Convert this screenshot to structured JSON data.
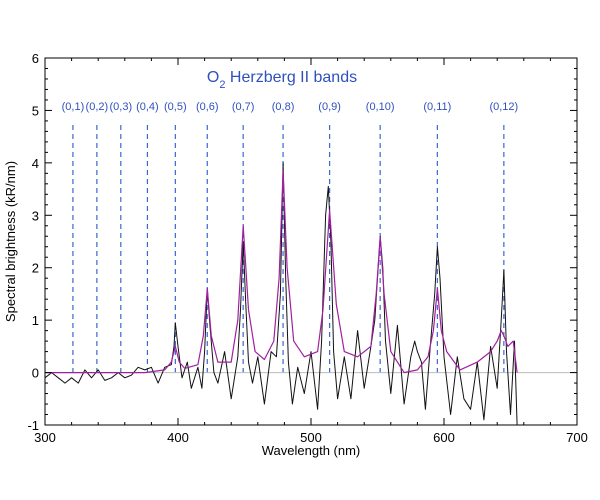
{
  "chart_data": {
    "type": "line",
    "title_main": "O",
    "title_sub": "2",
    "title_rest": " Herzberg II bands",
    "xlabel": "Wavelength (nm)",
    "ylabel": "Spectral brightness (kR/nm)",
    "xlim": [
      300,
      700
    ],
    "ylim": [
      -1,
      6
    ],
    "xticks": [
      "300",
      "400",
      "500",
      "600",
      "700"
    ],
    "yticks": [
      "-1",
      "0",
      "1",
      "2",
      "3",
      "4",
      "5",
      "6"
    ],
    "grid": false,
    "colors": {
      "observed": "#111111",
      "model": "#a020a0",
      "band": "#3a66d0",
      "zero": "#bbbbbb"
    },
    "bands": [
      {
        "label": "(0,1)",
        "x": 321
      },
      {
        "label": "(0,2)",
        "x": 339
      },
      {
        "label": "(0,3)",
        "x": 357
      },
      {
        "label": "(0,4)",
        "x": 377
      },
      {
        "label": "(0,5)",
        "x": 398
      },
      {
        "label": "(0,6)",
        "x": 422
      },
      {
        "label": "(0,7)",
        "x": 449
      },
      {
        "label": "(0,8)",
        "x": 479
      },
      {
        "label": "(0,9)",
        "x": 514
      },
      {
        "label": "(0,10)",
        "x": 552
      },
      {
        "label": "(0,11)",
        "x": 595
      },
      {
        "label": "(0,12)",
        "x": 645
      }
    ],
    "series": [
      {
        "x": [
          300,
          305,
          310,
          315,
          320,
          325,
          330,
          335,
          340,
          345,
          350,
          355,
          360,
          365,
          370,
          375,
          380,
          385,
          390,
          395,
          397,
          398,
          400,
          403,
          407,
          410,
          415,
          418,
          420,
          422,
          424,
          427,
          430,
          435,
          440,
          445,
          447,
          449,
          451,
          453,
          456,
          460,
          465,
          470,
          474,
          477,
          479,
          481,
          483,
          486,
          490,
          495,
          500,
          505,
          508,
          511,
          513,
          515,
          517,
          520,
          525,
          530,
          535,
          540,
          545,
          548,
          550,
          552,
          554,
          556,
          560,
          565,
          570,
          575,
          578,
          580,
          583,
          586,
          590,
          593,
          595,
          597,
          600,
          605,
          610,
          615,
          620,
          625,
          630,
          635,
          640,
          643,
          645,
          647,
          650,
          653,
          655
        ],
        "values": [
          -0.1,
          0.0,
          -0.1,
          -0.2,
          -0.1,
          -0.2,
          0.05,
          -0.1,
          0.05,
          -0.15,
          -0.1,
          0.0,
          -0.1,
          -0.05,
          0.1,
          0.05,
          0.1,
          -0.2,
          0.1,
          0.15,
          0.5,
          0.95,
          0.5,
          -0.1,
          0.2,
          -0.3,
          0.1,
          -0.3,
          0.4,
          1.6,
          0.9,
          0.0,
          -0.2,
          0.4,
          -0.5,
          0.3,
          1.2,
          2.5,
          1.3,
          0.2,
          -0.2,
          0.3,
          -0.6,
          0.4,
          0.3,
          1.5,
          4.0,
          1.8,
          0.2,
          -0.6,
          0.1,
          -0.4,
          0.4,
          -0.7,
          0.6,
          3.0,
          3.55,
          2.5,
          0.4,
          -0.5,
          0.3,
          -0.5,
          0.8,
          -0.3,
          0.5,
          1.0,
          1.8,
          2.6,
          2.0,
          0.6,
          -0.4,
          0.9,
          -0.6,
          0.3,
          0.6,
          0.4,
          0.2,
          -0.7,
          0.6,
          1.5,
          2.4,
          1.8,
          0.3,
          -0.8,
          0.3,
          -0.5,
          -0.7,
          0.2,
          -0.9,
          0.5,
          -0.3,
          1.0,
          1.95,
          0.4,
          -0.8,
          0.6,
          -1.0
        ]
      },
      {
        "x": [
          300,
          320,
          340,
          360,
          375,
          390,
          395,
          398,
          401,
          405,
          415,
          419,
          422,
          425,
          430,
          440,
          445,
          449,
          453,
          458,
          465,
          472,
          476,
          479,
          482,
          487,
          495,
          505,
          509,
          514,
          519,
          525,
          535,
          545,
          549,
          552,
          555,
          560,
          570,
          580,
          588,
          592,
          595,
          598,
          602,
          612,
          625,
          635,
          640,
          643,
          645,
          648,
          652,
          655
        ],
        "values": [
          0.0,
          0.0,
          0.0,
          0.0,
          0.0,
          0.05,
          0.2,
          0.5,
          0.2,
          0.08,
          0.15,
          0.7,
          1.6,
          0.7,
          0.2,
          0.2,
          1.0,
          2.8,
          1.2,
          0.4,
          0.25,
          0.6,
          1.8,
          3.85,
          2.0,
          0.6,
          0.3,
          0.4,
          1.2,
          3.1,
          1.3,
          0.4,
          0.3,
          0.5,
          1.5,
          2.6,
          1.5,
          0.4,
          0.0,
          0.05,
          0.3,
          0.8,
          1.6,
          0.8,
          0.4,
          0.05,
          0.2,
          0.4,
          0.6,
          0.8,
          0.7,
          0.5,
          0.6,
          0.0
        ]
      }
    ]
  }
}
